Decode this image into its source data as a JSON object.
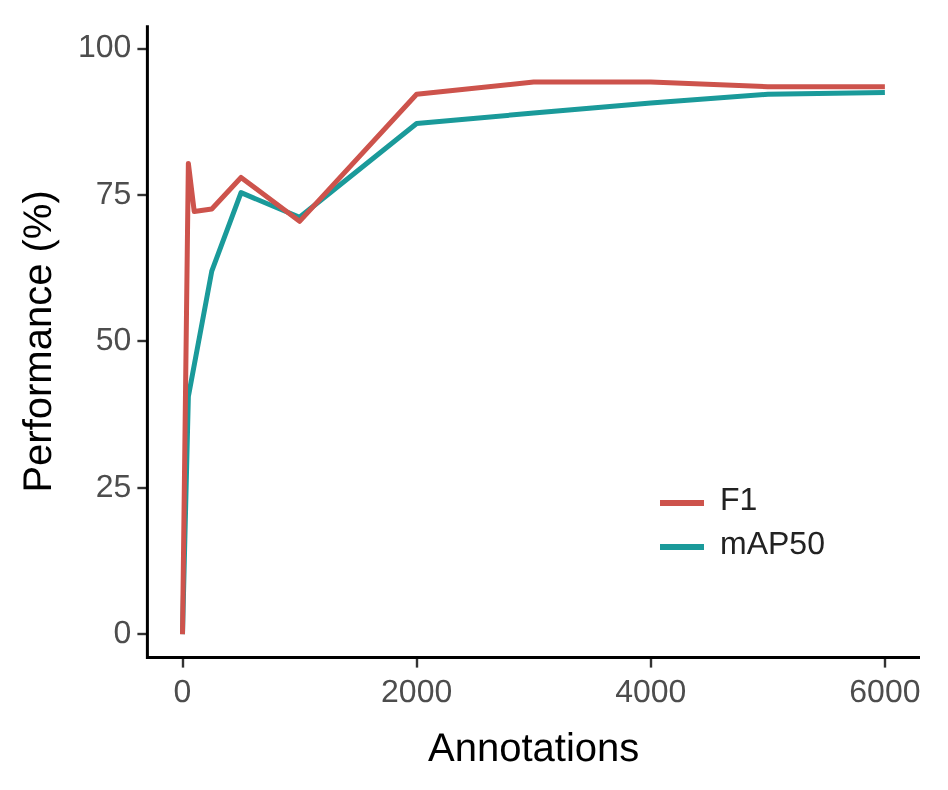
{
  "chart_data": {
    "type": "line",
    "xlabel": "Annotations",
    "ylabel": "Performance (%)",
    "xlim": [
      -300,
      6300
    ],
    "xticks": [
      0,
      2000,
      4000,
      6000
    ],
    "ylim": [
      -4,
      104
    ],
    "yticks": [
      0,
      25,
      50,
      75,
      100
    ],
    "grid": false,
    "legend": "bottom right",
    "marker": "none",
    "line_style": "solid",
    "series": [
      {
        "name": "F1",
        "color": "#cd534c",
        "x": [
          0,
          50,
          100,
          250,
          500,
          1000,
          2000,
          3000,
          4000,
          5000,
          6000
        ],
        "values": [
          0,
          80.4,
          72.2,
          72.6,
          78,
          70.5,
          92.2,
          94.3,
          94.3,
          93.5,
          93.5
        ]
      },
      {
        "name": "mAP50",
        "color": "#1a9a9a",
        "x": [
          0,
          50,
          250,
          500,
          1000,
          2000,
          3000,
          4000,
          5000,
          6000
        ],
        "values": [
          0,
          40.6,
          62,
          75.4,
          71.2,
          87.2,
          89,
          90.7,
          92.2,
          92.5
        ]
      }
    ]
  }
}
